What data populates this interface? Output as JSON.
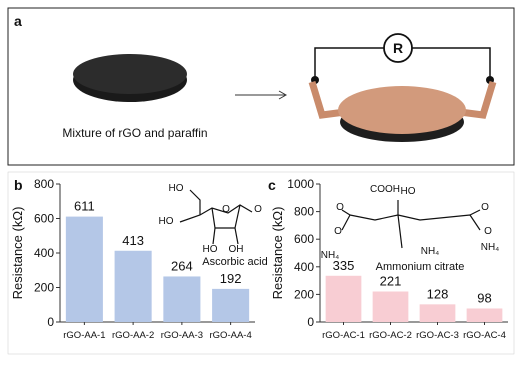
{
  "panel_a": {
    "label": "a",
    "caption": "Mixture of rGO and paraffin",
    "meter": "R"
  },
  "chart_data": [
    {
      "type": "bar",
      "panel": "b",
      "ylabel": "Resistance (kΩ)",
      "categories": [
        "rGO-AA-1",
        "rGO-AA-2",
        "rGO-AA-3",
        "rGO-AA-4"
      ],
      "values": [
        611,
        413,
        264,
        192
      ],
      "color": "#b4c7e7",
      "ylim": [
        0,
        800
      ],
      "yticks": [
        0,
        200,
        400,
        600,
        800
      ],
      "annotation": "Ascorbic acid",
      "structure_labels": [
        "HO",
        "HO",
        "O",
        "O",
        "HO",
        "OH"
      ]
    },
    {
      "type": "bar",
      "panel": "c",
      "ylabel": "Resistance (kΩ)",
      "categories": [
        "rGO-AC-1",
        "rGO-AC-2",
        "rGO-AC-3",
        "rGO-AC-4"
      ],
      "values": [
        335,
        221,
        128,
        98
      ],
      "color": "#f8cdd3",
      "ylim": [
        0,
        1000
      ],
      "yticks": [
        0,
        200,
        400,
        600,
        800,
        1000
      ],
      "annotation": "Ammonium citrate",
      "structure_labels": [
        "COOH",
        "HO",
        "O",
        "O",
        "O",
        "O",
        "NH₄",
        "NH₄",
        "NH₄"
      ]
    }
  ]
}
